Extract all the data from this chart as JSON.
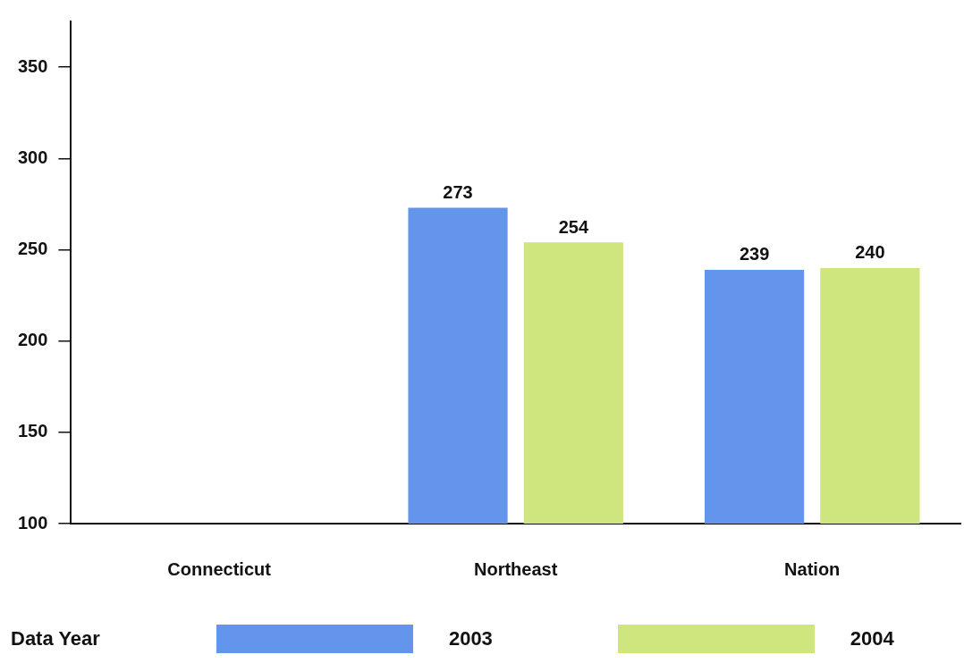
{
  "chart_data": {
    "type": "bar",
    "categories": [
      "Connecticut",
      "Northeast",
      "Nation"
    ],
    "series": [
      {
        "name": "2003",
        "color": "#6495ed",
        "values": [
          null,
          273,
          239
        ]
      },
      {
        "name": "2004",
        "color": "#cfe57d",
        "values": [
          null,
          254,
          240
        ]
      }
    ],
    "ylim": [
      100,
      375
    ],
    "yticks": [
      100,
      150,
      200,
      250,
      300,
      350
    ],
    "grid": false,
    "legend": "bottom",
    "legend_title": "Data Year",
    "data_labels": true
  }
}
